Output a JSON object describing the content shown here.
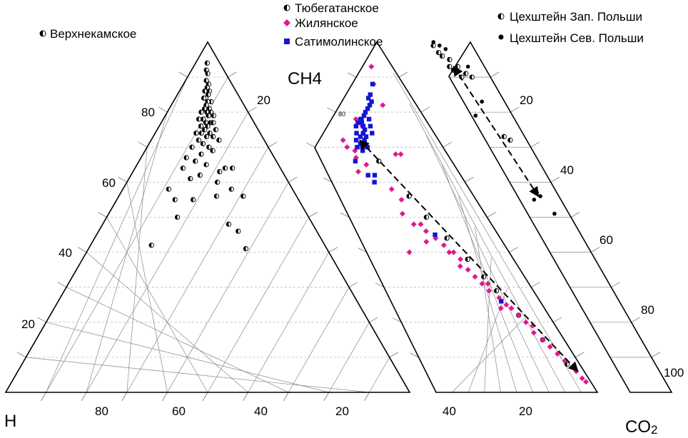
{
  "chart_data": {
    "type": "scatter",
    "title": "",
    "vertex_labels": {
      "top": "CH4",
      "left": "H",
      "right_main": "CO",
      "right_sub": "2"
    },
    "panel_a": {
      "ticks_left": [
        "20",
        "40",
        "60",
        "80"
      ],
      "ticks_right": [
        "20"
      ],
      "ticks_base": [
        "80",
        "60",
        "40",
        "20"
      ],
      "legend": [
        "Верхнекамское"
      ],
      "series": [
        {
          "name": "Верхнекамское",
          "marker": "half-circle",
          "points": [
            [
              48,
              94
            ],
            [
              46,
              92
            ],
            [
              50,
              91
            ],
            [
              47,
              89
            ],
            [
              52,
              88
            ],
            [
              49,
              87
            ],
            [
              45,
              86
            ],
            [
              53,
              86
            ],
            [
              51,
              85
            ],
            [
              47,
              84
            ],
            [
              44,
              84
            ],
            [
              55,
              83
            ],
            [
              50,
              83
            ],
            [
              48,
              82
            ],
            [
              52,
              81
            ],
            [
              46,
              81
            ],
            [
              42,
              80
            ],
            [
              49,
              80
            ],
            [
              54,
              80
            ],
            [
              57,
              79
            ],
            [
              51,
              79
            ],
            [
              45,
              78
            ],
            [
              40,
              78
            ],
            [
              53,
              77
            ],
            [
              48,
              77
            ],
            [
              56,
              77
            ],
            [
              43,
              76
            ],
            [
              50,
              76
            ],
            [
              47,
              75
            ],
            [
              58,
              75
            ],
            [
              39,
              74
            ],
            [
              44,
              74
            ],
            [
              52,
              74
            ],
            [
              55,
              73
            ],
            [
              49,
              73
            ],
            [
              42,
              72
            ],
            [
              60,
              72
            ],
            [
              46,
              71
            ],
            [
              37,
              70
            ],
            [
              51,
              70
            ],
            [
              54,
              69
            ],
            [
              45,
              68
            ],
            [
              34,
              67
            ],
            [
              41,
              66
            ],
            [
              49,
              65
            ],
            [
              33,
              64
            ],
            [
              58,
              63
            ],
            [
              62,
              64
            ],
            [
              67,
              64
            ],
            [
              39,
              61
            ],
            [
              45,
              62
            ],
            [
              56,
              60
            ],
            [
              27,
              58
            ],
            [
              64,
              58
            ],
            [
              32,
              55
            ],
            [
              42,
              55
            ],
            [
              55,
              56
            ],
            [
              70,
              56
            ],
            [
              35,
              50
            ],
            [
              60,
              48
            ],
            [
              64,
              46
            ],
            [
              66,
              41
            ],
            [
              26,
              42
            ]
          ]
        }
      ]
    },
    "panel_b": {
      "ticks_left": [
        "80"
      ],
      "ticks_base": [
        "40",
        "20"
      ],
      "legend": [
        "Тюбегатанское",
        "Жилянское",
        "Сатимолинское"
      ],
      "series": [
        {
          "name": "Тюбегатанское",
          "marker": "half-circle",
          "points": [
            [
              44,
              66
            ],
            [
              52,
              56
            ],
            [
              56,
              50
            ],
            [
              62,
              44
            ],
            [
              68,
              38
            ],
            [
              72,
              33
            ],
            [
              75,
              29
            ],
            [
              80,
              22
            ],
            [
              86,
              15
            ],
            [
              92,
              8
            ]
          ]
        },
        {
          "name": "Жилянское",
          "marker": "diamond",
          "points": [
            [
              30,
              93
            ],
            [
              26,
              78
            ],
            [
              34,
              76
            ],
            [
              20,
              72
            ],
            [
              25,
              70
            ],
            [
              30,
              69
            ],
            [
              36,
              74
            ],
            [
              28,
              67
            ],
            [
              33,
              65
            ],
            [
              24,
              63
            ],
            [
              42,
              58
            ],
            [
              45,
              55
            ],
            [
              40,
              51
            ],
            [
              44,
              48
            ],
            [
              49,
              48
            ],
            [
              50,
              46
            ],
            [
              54,
              44
            ],
            [
              46,
              43
            ],
            [
              57,
              42
            ],
            [
              30,
              40
            ],
            [
              58,
              40
            ],
            [
              61,
              40
            ],
            [
              63,
              38
            ],
            [
              60,
              36
            ],
            [
              64,
              35
            ],
            [
              66,
              33
            ],
            [
              68,
              31
            ],
            [
              72,
              31
            ],
            [
              70,
              29
            ],
            [
              74,
              27
            ],
            [
              76,
              25
            ],
            [
              78,
              24
            ],
            [
              71,
              24
            ],
            [
              80,
              22
            ],
            [
              82,
              20
            ],
            [
              85,
              19
            ],
            [
              83,
              17
            ],
            [
              86,
              15
            ],
            [
              88,
              13
            ],
            [
              90,
              11
            ],
            [
              92,
              9
            ],
            [
              95,
              6
            ],
            [
              96,
              4
            ],
            [
              97,
              3
            ],
            [
              60,
              68
            ],
            [
              64,
              68
            ],
            [
              56,
              82
            ],
            [
              42,
              88
            ]
          ]
        },
        {
          "name": "Сатимолинское",
          "marker": "square",
          "points": [
            [
              40,
              88
            ],
            [
              38,
              85
            ],
            [
              36,
              84
            ],
            [
              41,
              83
            ],
            [
              39,
              82
            ],
            [
              37,
              81
            ],
            [
              35,
              80
            ],
            [
              34,
              79
            ],
            [
              32,
              78
            ],
            [
              33,
              77
            ],
            [
              35,
              76
            ],
            [
              37,
              75
            ],
            [
              36,
              74
            ],
            [
              34,
              73
            ],
            [
              31,
              72
            ],
            [
              38,
              72
            ],
            [
              33,
              70
            ],
            [
              36,
              69
            ],
            [
              30,
              74
            ],
            [
              28,
              76
            ],
            [
              29,
              77
            ],
            [
              31,
              78
            ],
            [
              40,
              78
            ],
            [
              42,
              76
            ],
            [
              44,
              74
            ],
            [
              39,
              73
            ],
            [
              35,
              71
            ],
            [
              37,
              70
            ],
            [
              41,
              70
            ],
            [
              26,
              66
            ],
            [
              30,
              62
            ],
            [
              32,
              60
            ],
            [
              35,
              62
            ],
            [
              55,
              45
            ],
            [
              74,
              26
            ]
          ]
        }
      ],
      "arrow": {
        "from": [
          34,
          72
        ],
        "to": [
          96,
          6
        ]
      }
    },
    "panel_c": {
      "ticks_right": [
        "20",
        "40",
        "60",
        "80",
        "100"
      ],
      "legend": [
        "Цехштейн Зап. Польши",
        "Цехштейн Сев. Польши"
      ],
      "series": [
        {
          "name": "Цехштейн Зап. Польши",
          "marker": "half-circle",
          "points": [
            [
              0.05,
              99
            ],
            [
              0.08,
              97
            ],
            [
              0.12,
              96
            ],
            [
              0.25,
              95
            ],
            [
              0.15,
              93
            ],
            [
              0.35,
              93
            ],
            [
              0.45,
              91
            ],
            [
              0.55,
              90
            ],
            [
              0.2,
              92
            ],
            [
              0.3,
              90
            ],
            [
              0.5,
              73
            ],
            [
              0.6,
              72
            ],
            [
              0.5,
              57
            ]
          ]
        },
        {
          "name": "Цехштейн Сев. Польши",
          "marker": "dot",
          "points": [
            [
              0.2,
              99
            ],
            [
              0.3,
              98
            ],
            [
              0.1,
              100
            ],
            [
              0.6,
              93
            ],
            [
              0.45,
              83
            ],
            [
              0.1,
              79
            ],
            [
              0.5,
              57
            ],
            [
              0.55,
              56
            ],
            [
              0.35,
              55
            ],
            [
              0.65,
              51
            ]
          ]
        }
      ],
      "arrow": {
        "from": [
          0.25,
          93
        ],
        "to": [
          0.5,
          56
        ]
      }
    }
  }
}
